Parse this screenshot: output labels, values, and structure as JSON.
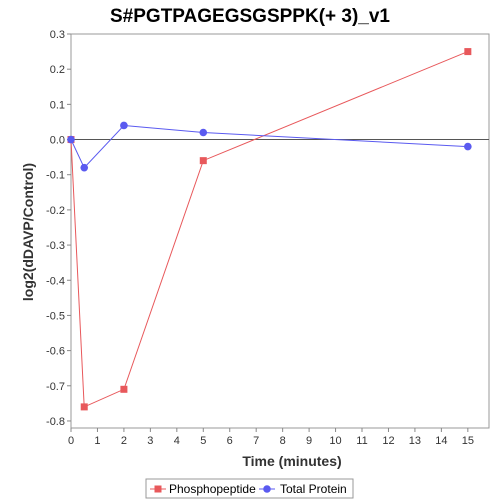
{
  "chart_data": {
    "type": "line",
    "title": "S#PGTPAGEGSGSPPK(+ 3)_v1",
    "xlabel": "Time (minutes)",
    "ylabel": "log2(dDAVP/Control)",
    "xlim": [
      0,
      15.8
    ],
    "ylim": [
      -0.82,
      0.3
    ],
    "xticks": [
      0,
      1,
      2,
      3,
      4,
      5,
      6,
      7,
      8,
      9,
      10,
      11,
      12,
      13,
      14,
      15
    ],
    "yticks": [
      0.3,
      0.2,
      0.1,
      0.0,
      -0.1,
      -0.2,
      -0.3,
      -0.4,
      -0.5,
      -0.6,
      -0.7,
      -0.8
    ],
    "ytick_labels": [
      "0.3",
      "0.2",
      "0.1",
      "0.0",
      "-0.1",
      "-0.2",
      "-0.3",
      "-0.4",
      "-0.5",
      "-0.6",
      "-0.7",
      "-0.8"
    ],
    "zero_line": true,
    "grid": false,
    "legend_position": "bottom",
    "series": [
      {
        "name": "Phosphopeptide",
        "color": "#e8585b",
        "marker": "square",
        "x": [
          0,
          0.5,
          2,
          5,
          15
        ],
        "y": [
          0.0,
          -0.76,
          -0.71,
          -0.06,
          0.25
        ]
      },
      {
        "name": "Total Protein",
        "color": "#5a5af0",
        "marker": "circle",
        "x": [
          0,
          0.5,
          2,
          5,
          15
        ],
        "y": [
          0.0,
          -0.08,
          0.04,
          0.02,
          -0.02
        ]
      }
    ]
  }
}
